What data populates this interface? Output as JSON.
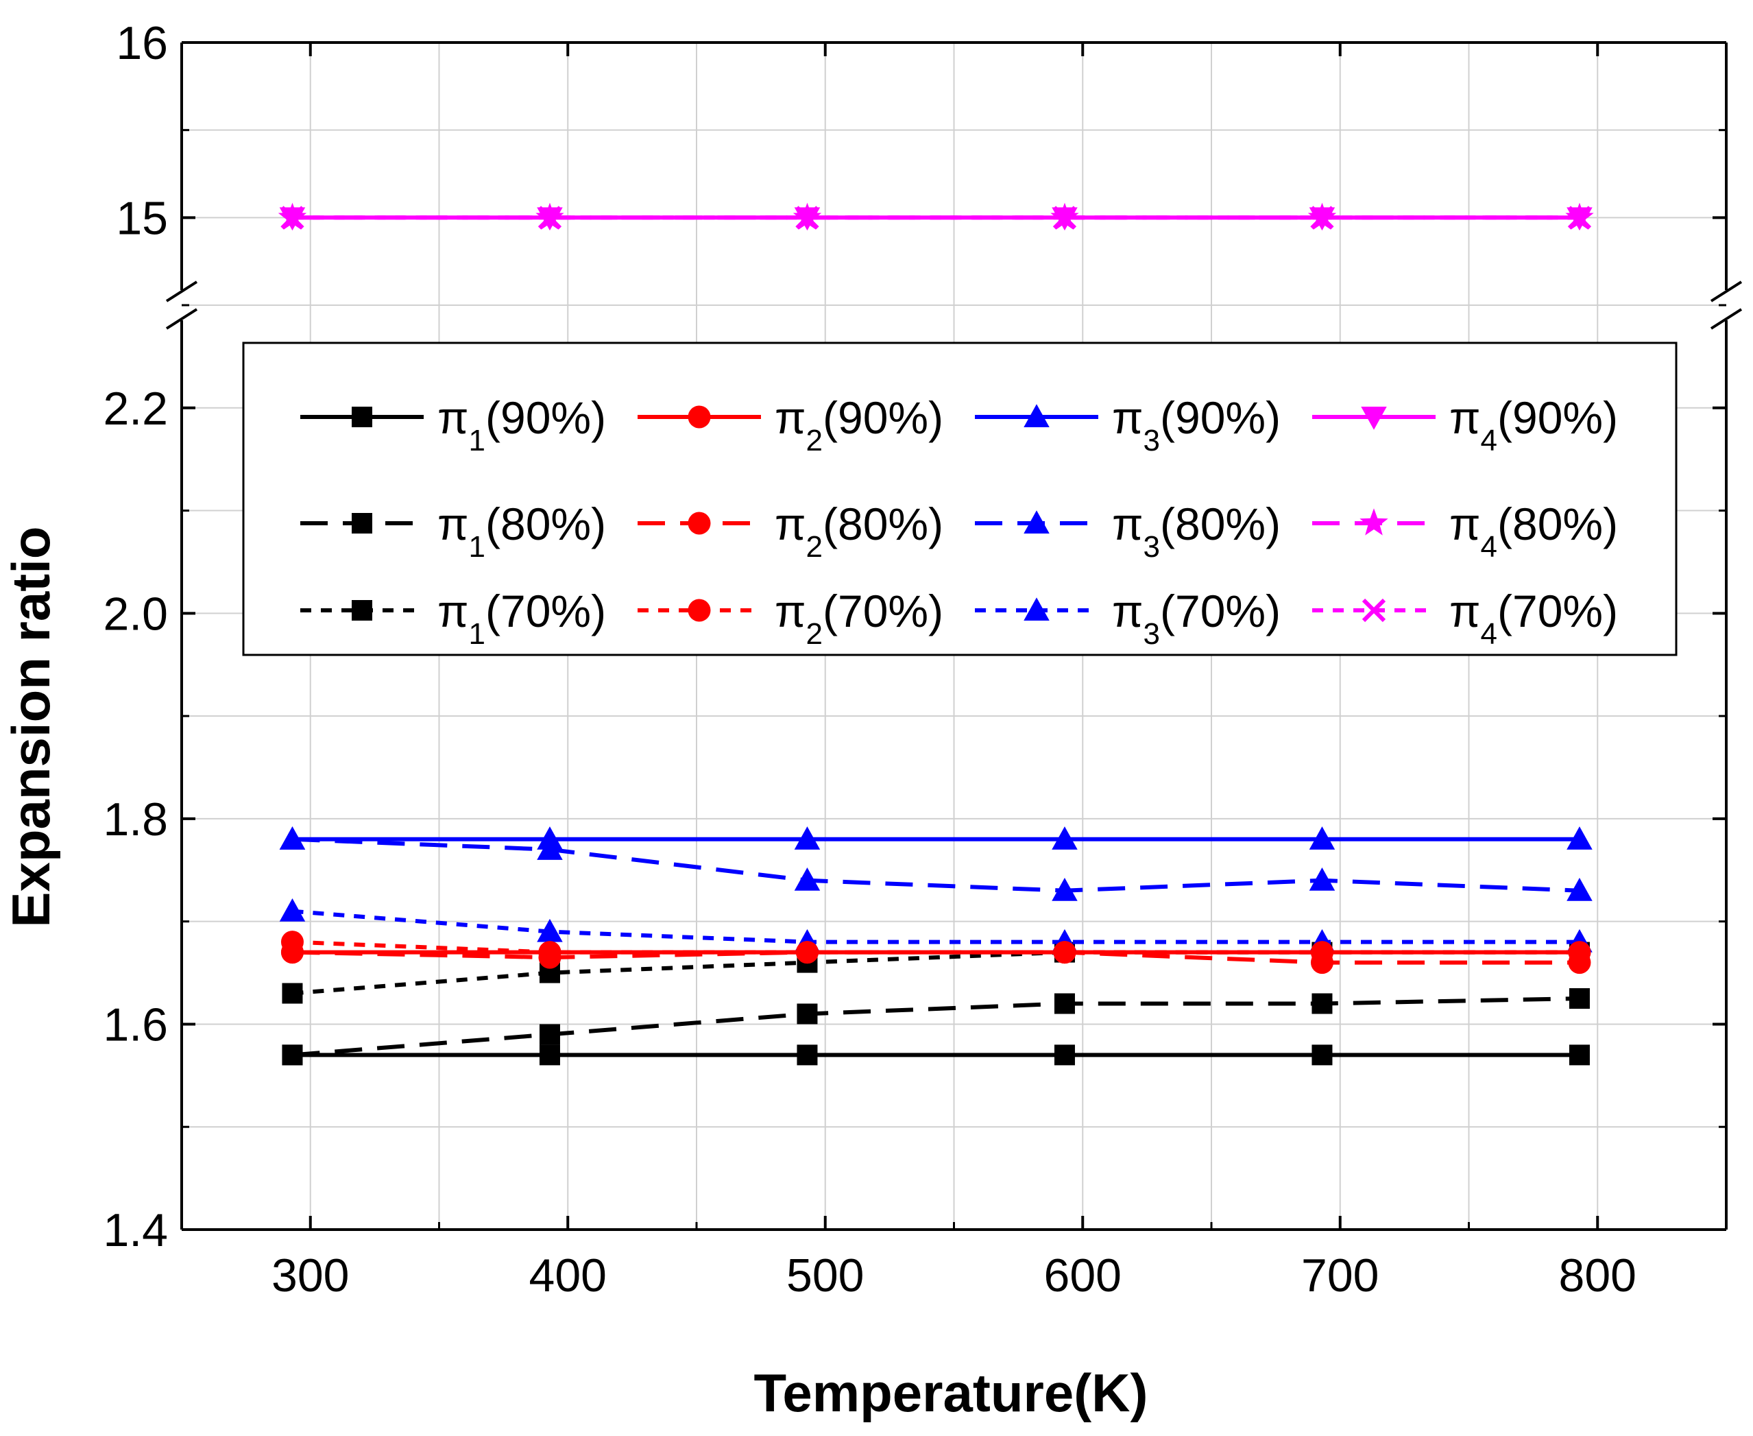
{
  "chart_data": {
    "type": "line",
    "title": "",
    "xlabel": "Temperature(K)",
    "ylabel": "Expansion ratio",
    "xlim": [
      250,
      850
    ],
    "ylim_lower": [
      1.4,
      2.3
    ],
    "ylim_upper": [
      14.5,
      16
    ],
    "axis_break": "between 2.3 and 14.5",
    "grid": true,
    "legend_position": "upper-middle",
    "x_ticks": [
      "300",
      "400",
      "500",
      "600",
      "700",
      "800"
    ],
    "y_ticks_lower": [
      "1.4",
      "1.6",
      "1.8",
      "2.0",
      "2.2"
    ],
    "y_ticks_upper": [
      "15",
      "16"
    ],
    "x": [
      293,
      393,
      493,
      593,
      693,
      793
    ],
    "series": [
      {
        "name": "π1(90%)",
        "label_base": "π",
        "label_sub": "1",
        "label_tail": "(90%)",
        "color": "#000000",
        "dash": "solid",
        "marker": "square",
        "values": [
          1.57,
          1.57,
          1.57,
          1.57,
          1.57,
          1.57
        ]
      },
      {
        "name": "π2(90%)",
        "label_base": "π",
        "label_sub": "2",
        "label_tail": "(90%)",
        "color": "#ff0000",
        "dash": "solid",
        "marker": "circle",
        "values": [
          1.67,
          1.67,
          1.67,
          1.67,
          1.67,
          1.67
        ]
      },
      {
        "name": "π3(90%)",
        "label_base": "π",
        "label_sub": "3",
        "label_tail": "(90%)",
        "color": "#0000ff",
        "dash": "solid",
        "marker": "triangle-up",
        "values": [
          1.78,
          1.78,
          1.78,
          1.78,
          1.78,
          1.78
        ]
      },
      {
        "name": "π4(90%)",
        "label_base": "π",
        "label_sub": "4",
        "label_tail": "(90%)",
        "color": "#ff00ff",
        "dash": "solid",
        "marker": "triangle-down",
        "values": [
          15,
          15,
          15,
          15,
          15,
          15
        ]
      },
      {
        "name": "π1(80%)",
        "label_base": "π",
        "label_sub": "1",
        "label_tail": "(80%)",
        "color": "#000000",
        "dash": "dash",
        "marker": "square",
        "values": [
          1.57,
          1.59,
          1.61,
          1.62,
          1.62,
          1.625
        ]
      },
      {
        "name": "π2(80%)",
        "label_base": "π",
        "label_sub": "2",
        "label_tail": "(80%)",
        "color": "#ff0000",
        "dash": "dash",
        "marker": "circle",
        "values": [
          1.67,
          1.665,
          1.67,
          1.67,
          1.66,
          1.66
        ]
      },
      {
        "name": "π3(80%)",
        "label_base": "π",
        "label_sub": "3",
        "label_tail": "(80%)",
        "color": "#0000ff",
        "dash": "dash",
        "marker": "triangle-up",
        "values": [
          1.78,
          1.77,
          1.74,
          1.73,
          1.74,
          1.73
        ]
      },
      {
        "name": "π4(80%)",
        "label_base": "π",
        "label_sub": "4",
        "label_tail": "(80%)",
        "color": "#ff00ff",
        "dash": "dash",
        "marker": "star",
        "values": [
          15,
          15,
          15,
          15,
          15,
          15
        ]
      },
      {
        "name": "π1(70%)",
        "label_base": "π",
        "label_sub": "1",
        "label_tail": "(70%)",
        "color": "#000000",
        "dash": "dot",
        "marker": "square",
        "values": [
          1.63,
          1.65,
          1.66,
          1.67,
          1.67,
          1.67
        ]
      },
      {
        "name": "π2(70%)",
        "label_base": "π",
        "label_sub": "2",
        "label_tail": "(70%)",
        "color": "#ff0000",
        "dash": "dot",
        "marker": "circle",
        "values": [
          1.68,
          1.67,
          1.67,
          1.67,
          1.67,
          1.67
        ]
      },
      {
        "name": "π3(70%)",
        "label_base": "π",
        "label_sub": "3",
        "label_tail": "(70%)",
        "color": "#0000ff",
        "dash": "dot",
        "marker": "triangle-up",
        "values": [
          1.71,
          1.69,
          1.68,
          1.68,
          1.68,
          1.68
        ]
      },
      {
        "name": "π4(70%)",
        "label_base": "π",
        "label_sub": "4",
        "label_tail": "(70%)",
        "color": "#ff00ff",
        "dash": "dot",
        "marker": "x",
        "values": [
          15,
          15,
          15,
          15,
          15,
          15
        ]
      }
    ]
  }
}
